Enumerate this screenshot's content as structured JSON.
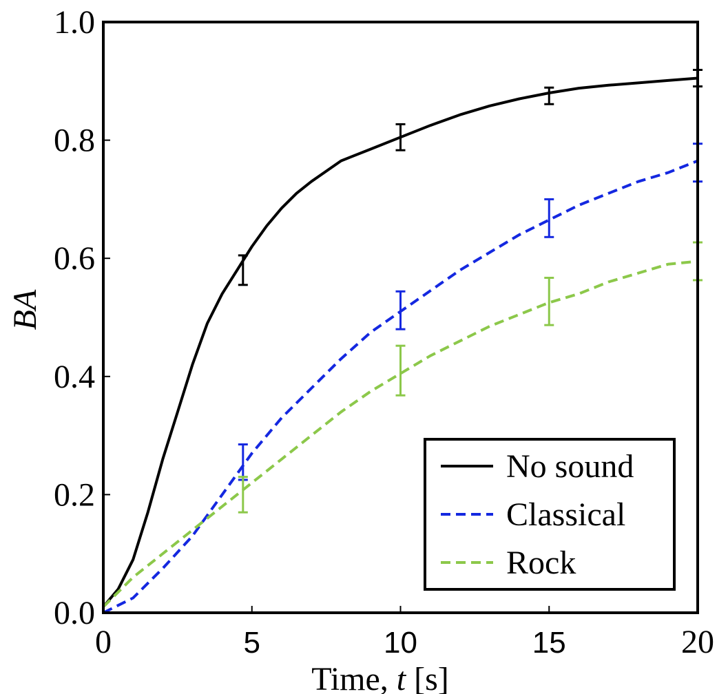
{
  "chart_data": {
    "type": "line",
    "xlabel": "Time, t [s]",
    "xlabel_parts": {
      "prefix": "Time, ",
      "var": "t",
      "suffix": " [s]"
    },
    "ylabel": "BA",
    "xlim": [
      0,
      20
    ],
    "ylim": [
      0,
      1.0
    ],
    "x_ticks": [
      {
        "value": 0,
        "label": "0",
        "font": "serif"
      },
      {
        "value": 5,
        "label": "5",
        "font": "sans"
      },
      {
        "value": 10,
        "label": "10",
        "font": "sans"
      },
      {
        "value": 15,
        "label": "15",
        "font": "sans"
      },
      {
        "value": 20,
        "label": "20",
        "font": "serif"
      }
    ],
    "y_ticks": [
      {
        "value": 0.0,
        "label": "0.0"
      },
      {
        "value": 0.2,
        "label": "0.2"
      },
      {
        "value": 0.4,
        "label": "0.4"
      },
      {
        "value": 0.6,
        "label": "0.6"
      },
      {
        "value": 0.8,
        "label": "0.8"
      },
      {
        "value": 1.0,
        "label": "1.0"
      }
    ],
    "grid": false,
    "legend_position": "bottom-right",
    "series": [
      {
        "name": "No sound",
        "color": "#000000",
        "dash": "solid",
        "x": [
          0,
          0.5,
          1,
          1.5,
          2,
          2.5,
          3,
          3.5,
          4,
          4.5,
          5,
          5.5,
          6,
          6.5,
          7,
          8,
          9,
          10,
          11,
          12,
          13,
          14,
          15,
          16,
          17,
          18,
          19,
          20
        ],
        "y": [
          0.01,
          0.04,
          0.09,
          0.17,
          0.26,
          0.34,
          0.42,
          0.49,
          0.54,
          0.58,
          0.62,
          0.655,
          0.685,
          0.71,
          0.73,
          0.765,
          0.785,
          0.805,
          0.825,
          0.843,
          0.858,
          0.87,
          0.88,
          0.888,
          0.893,
          0.897,
          0.901,
          0.905
        ],
        "error_bars": [
          {
            "x": 4.7,
            "y": 0.58,
            "err": 0.025
          },
          {
            "x": 10,
            "y": 0.805,
            "err": 0.022
          },
          {
            "x": 15,
            "y": 0.875,
            "err": 0.014
          },
          {
            "x": 20,
            "y": 0.905,
            "err": 0.014
          }
        ]
      },
      {
        "name": "Classical",
        "color": "#1428e0",
        "dash": "dashed",
        "x": [
          0,
          1,
          2,
          3,
          4,
          5,
          6,
          7,
          8,
          9,
          10,
          11,
          12,
          13,
          14,
          15,
          16,
          17,
          18,
          19,
          20
        ],
        "y": [
          0.0,
          0.025,
          0.075,
          0.13,
          0.2,
          0.27,
          0.33,
          0.38,
          0.43,
          0.475,
          0.51,
          0.545,
          0.58,
          0.61,
          0.64,
          0.665,
          0.69,
          0.71,
          0.73,
          0.745,
          0.765
        ],
        "error_bars": [
          {
            "x": 4.7,
            "y": 0.255,
            "err": 0.03
          },
          {
            "x": 10,
            "y": 0.512,
            "err": 0.032
          },
          {
            "x": 15,
            "y": 0.668,
            "err": 0.032
          },
          {
            "x": 20,
            "y": 0.762,
            "err": 0.032
          }
        ]
      },
      {
        "name": "Rock",
        "color": "#8cc84a",
        "dash": "dashed",
        "x": [
          0,
          1,
          2,
          3,
          4,
          5,
          6,
          7,
          8,
          9,
          10,
          11,
          12,
          13,
          14,
          15,
          16,
          17,
          18,
          19,
          20
        ],
        "y": [
          0.01,
          0.06,
          0.1,
          0.14,
          0.18,
          0.22,
          0.26,
          0.3,
          0.34,
          0.375,
          0.405,
          0.435,
          0.46,
          0.485,
          0.505,
          0.525,
          0.54,
          0.56,
          0.575,
          0.59,
          0.595
        ],
        "error_bars": [
          {
            "x": 4.7,
            "y": 0.2,
            "err": 0.03
          },
          {
            "x": 10,
            "y": 0.41,
            "err": 0.042
          },
          {
            "x": 15,
            "y": 0.527,
            "err": 0.04
          },
          {
            "x": 20,
            "y": 0.595,
            "err": 0.032
          }
        ]
      }
    ]
  }
}
